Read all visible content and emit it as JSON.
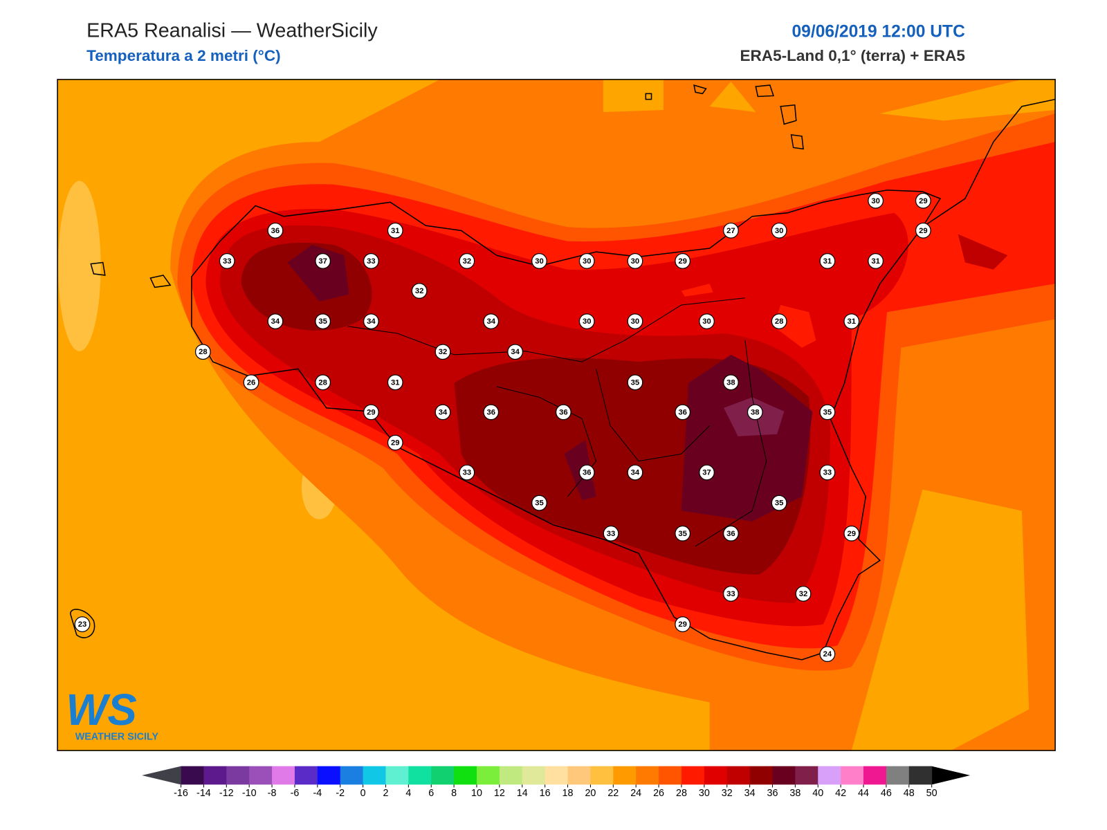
{
  "header": {
    "title": "ERA5 Reanalisi — WeatherSicily",
    "subtitle": "Temperatura a 2 metri (°C)",
    "datetime": "09/06/2019 12:00 UTC",
    "source": "ERA5-Land 0,1° (terra) + ERA5"
  },
  "map": {
    "stations": [
      36,
      31,
      33,
      37,
      33,
      32,
      30,
      30,
      30,
      29,
      32,
      34,
      35,
      34,
      34,
      30,
      30,
      30,
      28,
      31,
      27,
      30,
      30,
      29,
      29,
      31,
      31,
      28,
      32,
      34,
      26,
      28,
      31,
      35,
      38,
      29,
      34,
      36,
      36,
      36,
      38,
      35,
      29,
      33,
      36,
      34,
      37,
      33,
      35,
      35,
      33,
      35,
      36,
      29,
      33,
      32,
      29,
      24,
      23
    ]
  },
  "logo": {
    "mark": "WS",
    "name": "WEATHER SICILY"
  },
  "colorbar": {
    "ticks": [
      -16,
      -14,
      -12,
      -10,
      -8,
      -6,
      -4,
      -2,
      0,
      2,
      4,
      6,
      8,
      10,
      12,
      14,
      16,
      18,
      20,
      22,
      24,
      26,
      28,
      30,
      32,
      34,
      36,
      38,
      40,
      42,
      44,
      46,
      48,
      50
    ],
    "colors": [
      "#3a0a4f",
      "#5c1a8c",
      "#7b3aa0",
      "#9a50b8",
      "#e07ae8",
      "#5b2bc8",
      "#0a10ff",
      "#1a7fe0",
      "#10c8e6",
      "#5ef0d0",
      "#10e0a0",
      "#10d070",
      "#10e010",
      "#7aee3a",
      "#c0ea80",
      "#e0e89a",
      "#ffe0a0",
      "#ffc87a",
      "#ffc040",
      "#ff9a00",
      "#ff7a00",
      "#ff5500",
      "#ff1a00",
      "#e00000",
      "#c00000",
      "#900000",
      "#6a0020",
      "#80204a",
      "#d8a0f8",
      "#ff80c8",
      "#f01890",
      "#808080",
      "#303030"
    ],
    "under_color": "#404048",
    "over_color": "#000000"
  }
}
